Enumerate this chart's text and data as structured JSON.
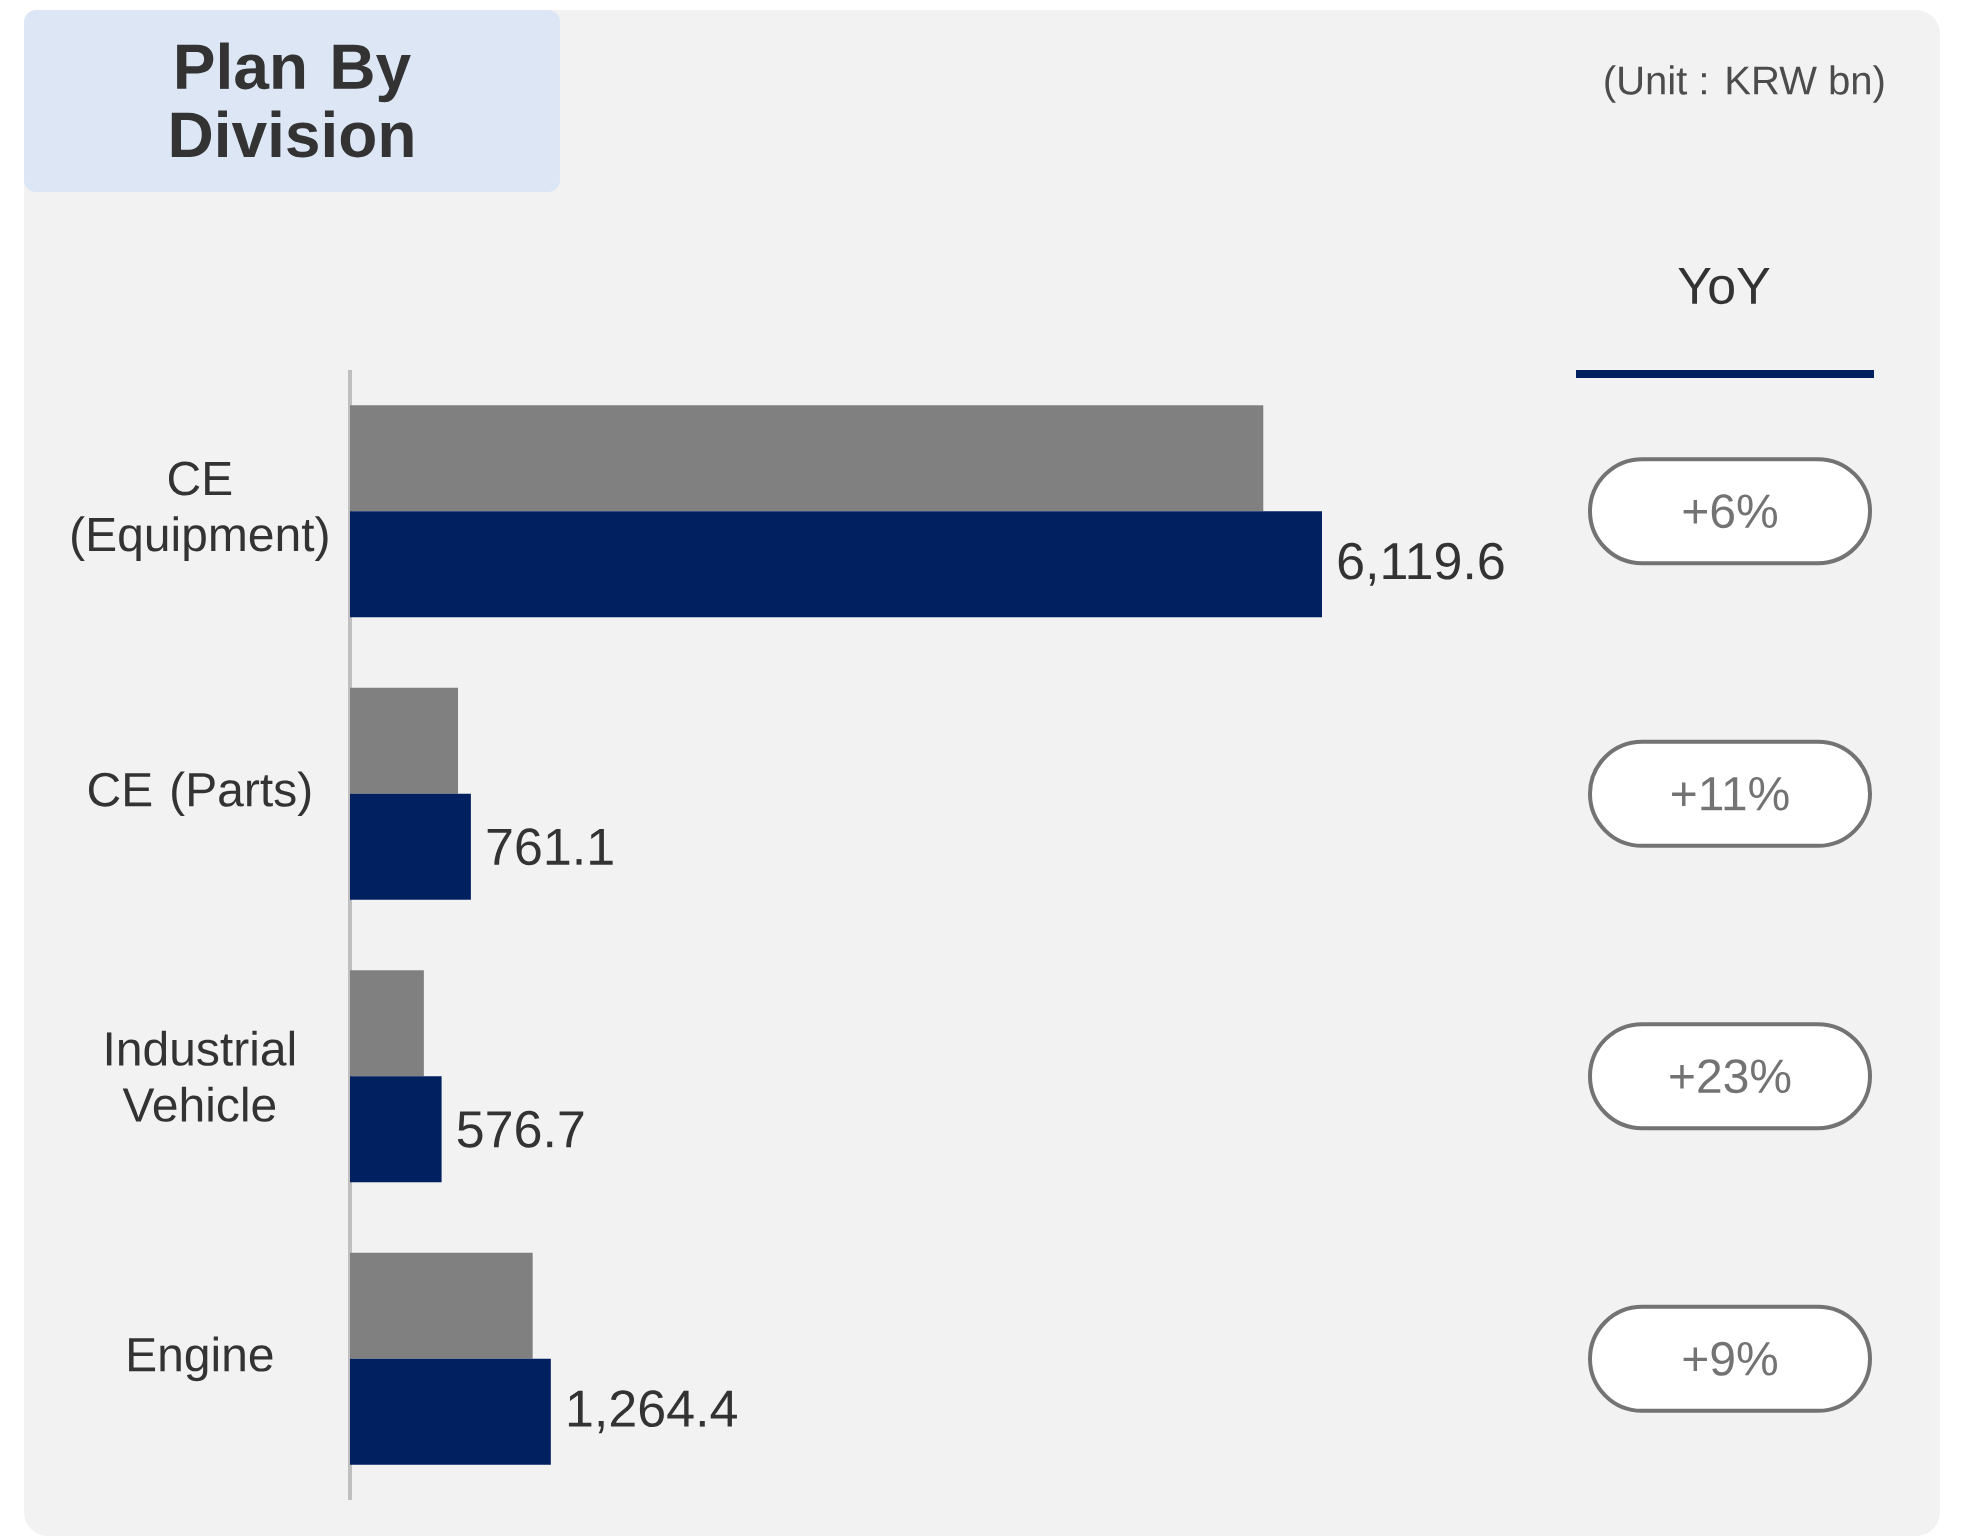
{
  "chart_data": {
    "type": "bar",
    "orientation": "horizontal",
    "title": "Plan By Division",
    "categories": [
      "CE (Equipment)",
      "CE (Parts)",
      "Industrial Vehicle",
      "Engine"
    ],
    "series": [
      {
        "color": "#808080",
        "values": [
          5750,
          680,
          465,
          1150
        ]
      },
      {
        "color": "#00205f",
        "values": [
          6119.6,
          761.1,
          576.7,
          1264.4
        ],
        "value_labels": [
          "6,119.6",
          "761.1",
          "576.7",
          "1,264.4"
        ]
      }
    ],
    "annotations": [
      "(Unit : KRW bn)",
      "YoY",
      "+6%",
      "+11%",
      "+23%",
      "+9%"
    ]
  }
}
